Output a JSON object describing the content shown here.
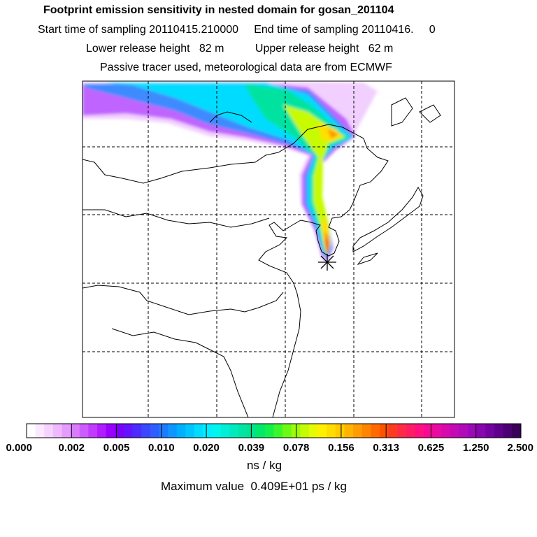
{
  "header": {
    "title": "Footprint emission sensitivity in nested domain for gosan_201104",
    "line2": "Start time of sampling 20110415.210000     End time of sampling 20110416.     0",
    "line3": "Lower release height   82 m          Upper release height   62 m",
    "line4": "Passive tracer used, meteorological data are from ECMWF"
  },
  "colorbar": {
    "tick_labels": [
      "0.000",
      "0.002",
      "0.005",
      "0.010",
      "0.020",
      "0.039",
      "0.078",
      "0.156",
      "0.313",
      "0.625",
      "1.250",
      "2.500"
    ],
    "colors": [
      "#ffffff",
      "#fbe9ff",
      "#f5d2ff",
      "#efb9ff",
      "#e69cff",
      "#d97bff",
      "#cd5cff",
      "#c03bff",
      "#b11bff",
      "#9a00ff",
      "#7d00ff",
      "#6214ff",
      "#4a2cff",
      "#3b46ff",
      "#2f5eff",
      "#1c7bff",
      "#0d96ff",
      "#00afff",
      "#00c6ff",
      "#00dcff",
      "#00eeff",
      "#00f5ee",
      "#00efd6",
      "#00eabd",
      "#00e5a3",
      "#00e389",
      "#00ea6a",
      "#14f04a",
      "#3cf62b",
      "#6cfa14",
      "#9cfc0a",
      "#c4fc05",
      "#e6fb02",
      "#fff000",
      "#ffdd00",
      "#ffca00",
      "#ffb400",
      "#ff9c00",
      "#ff8400",
      "#ff6b00",
      "#ff5200",
      "#ff3a22",
      "#ff2a45",
      "#ff1c63",
      "#ff0f7f",
      "#f50a91",
      "#e80aa1",
      "#d70aac",
      "#c40ab5",
      "#b00ab9",
      "#9c09b6",
      "#8706ad",
      "#73039e",
      "#5f008a",
      "#4a0070",
      "#3a0058"
    ],
    "units": "ns / kg",
    "max_value": "Maximum value  0.409E+01 ps / kg"
  },
  "map": {
    "receptor_marker": "asterisk",
    "plume_colors": {
      "lightest": "#e6a8ff",
      "purple": "#b040ff",
      "blue": "#2f8fff",
      "cyan": "#00dcff",
      "teal": "#00e3a0",
      "green": "#48f030",
      "lime": "#c8fa05",
      "yellow": "#ffe000",
      "orange": "#ff9000",
      "red": "#ff3a22",
      "magenta": "#ff0f7f"
    }
  }
}
